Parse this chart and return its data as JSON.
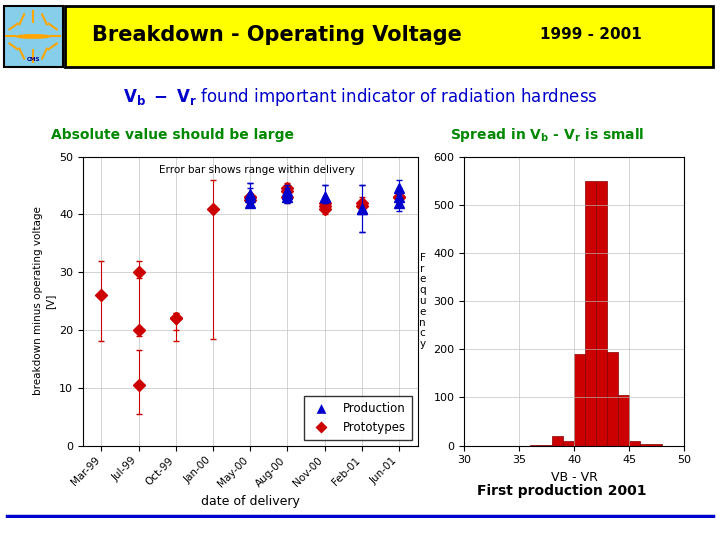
{
  "title": "Breakdown - Operating Voltage",
  "title_year": "1999 - 2001",
  "subtitle": "V_b - V_r found important indicator of radiation hardness",
  "left_subtitle": "Absolute value should be large",
  "right_subtitle": "Spread in V_b - V_r is small",
  "left_annotation": "Error bar shows range within delivery",
  "left_ylabel": "breakdown minus operating voltage\n[V]",
  "left_xlabel": "date of delivery",
  "right_xlabel": "VB - VR",
  "right_ylabel_chars": "F\nr\ne\nq\nu\ne\nn\nc\ny",
  "footer": "First production 2001",
  "bg_color": "#ffffff",
  "header_color": "#ffff00",
  "subtitle_color": "#0000cc",
  "section_title_color": "#008800",
  "footer_color": "#000000",
  "bottom_line_color": "#0000cc",
  "proto_dates": [
    "Mar-99",
    "Jul-99",
    "Jul-99",
    "Jul-99",
    "Oct-99",
    "Oct-99",
    "Jan-00",
    "May-00",
    "May-00",
    "May-00",
    "Aug-00",
    "Aug-00",
    "Aug-00",
    "Nov-00",
    "Nov-00",
    "Nov-00",
    "Feb-01",
    "Feb-01",
    "Jun-01",
    "Jun-01"
  ],
  "proto_values": [
    26,
    30,
    20,
    10.5,
    22,
    22,
    41,
    43,
    42.5,
    43,
    43,
    44,
    44.5,
    42,
    41,
    41.5,
    41.5,
    42,
    43,
    43
  ],
  "proto_yerr_low": [
    8,
    1,
    1,
    5,
    4,
    2,
    22.5,
    0.5,
    0.5,
    0.5,
    1,
    1,
    1,
    1,
    1,
    1,
    1,
    1,
    1,
    1
  ],
  "proto_yerr_high": [
    6,
    2,
    10,
    6,
    1,
    1,
    5,
    0.5,
    0.5,
    0.5,
    1,
    1,
    1,
    1,
    1,
    1,
    1,
    1,
    1,
    1
  ],
  "proto_color": "#cc0000",
  "prod_dates": [
    "May-00",
    "May-00",
    "May-00",
    "Aug-00",
    "Aug-00",
    "Aug-00",
    "Nov-00",
    "Nov-00",
    "Feb-01",
    "Feb-01",
    "Jun-01",
    "Jun-01",
    "Jun-01"
  ],
  "prod_values": [
    43.5,
    43,
    42,
    44,
    43.5,
    43,
    43,
    43,
    41,
    41,
    44.5,
    43,
    42
  ],
  "prod_yerr_low": [
    1.5,
    0.5,
    0.5,
    1,
    1,
    1,
    1,
    1,
    4,
    4,
    1.5,
    1.5,
    1.5
  ],
  "prod_yerr_high": [
    2,
    2.5,
    2.5,
    1,
    1,
    1,
    2,
    2,
    4,
    4,
    1.5,
    1.5,
    1.5
  ],
  "prod_color": "#0000cc",
  "xlabels": [
    "Mar-99",
    "Jul-99",
    "Oct-99",
    "Jan-00",
    "May-00",
    "Aug-00",
    "Nov-00",
    "Feb-01",
    "Jun-01"
  ],
  "ylim_left": [
    0,
    50
  ],
  "hist_bins": [
    30,
    32,
    34,
    36,
    38,
    39,
    40,
    41,
    42,
    43,
    44,
    45,
    46,
    48,
    50
  ],
  "hist_values": [
    0,
    0,
    0,
    2,
    20,
    10,
    190,
    550,
    550,
    195,
    105,
    10,
    3,
    0
  ],
  "hist_color": "#cc0000",
  "xlim_hist": [
    30,
    50
  ],
  "ylim_hist": [
    0,
    600
  ]
}
